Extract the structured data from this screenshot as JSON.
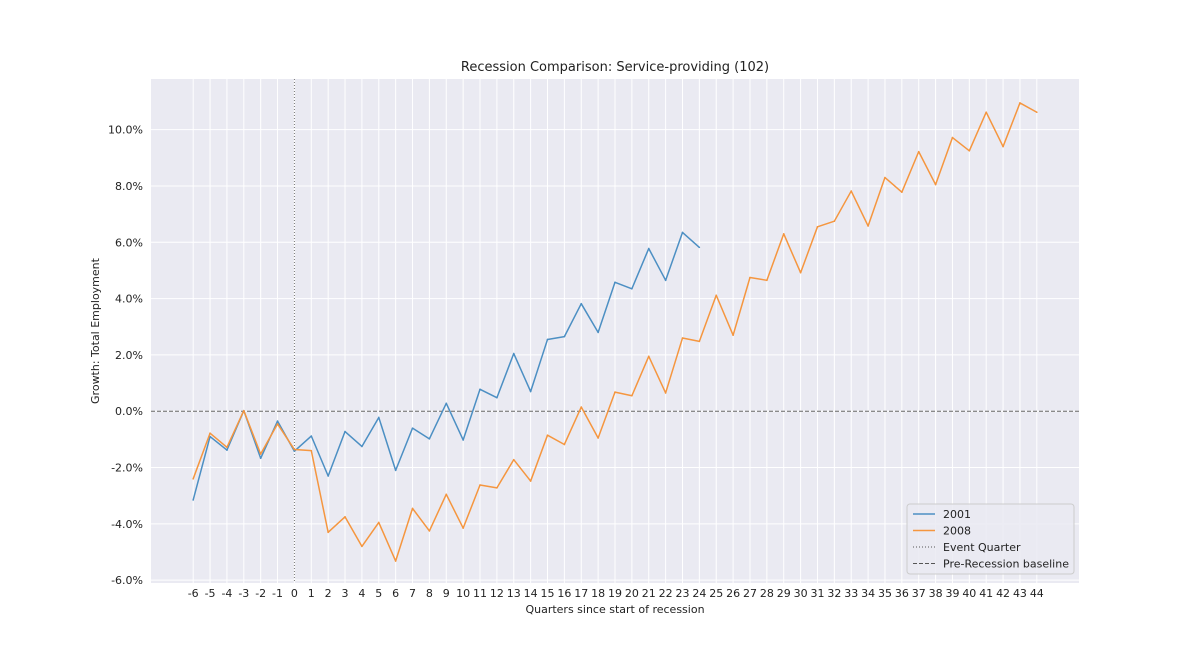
{
  "chart_data": {
    "type": "line",
    "title": "Recession Comparison: Service-providing (102)",
    "xlabel": "Quarters since start of recession",
    "ylabel": "Growth: Total Employment",
    "xlim": [
      -8.5,
      46.5
    ],
    "ylim": [
      -6.1,
      11.8
    ],
    "x_ticks": [
      -6,
      -5,
      -4,
      -3,
      -2,
      -1,
      0,
      1,
      2,
      3,
      4,
      5,
      6,
      7,
      8,
      9,
      10,
      11,
      12,
      13,
      14,
      15,
      16,
      17,
      18,
      19,
      20,
      21,
      22,
      23,
      24,
      25,
      26,
      27,
      28,
      29,
      30,
      31,
      32,
      33,
      34,
      35,
      36,
      37,
      38,
      39,
      40,
      41,
      42,
      43,
      44
    ],
    "y_ticks": [
      -6,
      -4,
      -2,
      0,
      2,
      4,
      6,
      8,
      10
    ],
    "y_tick_labels": [
      "-6.0%",
      "-4.0%",
      "-2.0%",
      "0.0%",
      "2.0%",
      "4.0%",
      "6.0%",
      "8.0%",
      "10.0%"
    ],
    "grid": true,
    "event_quarter_x": 0,
    "baseline_y": 0,
    "legend_position": "bottom-right",
    "series": [
      {
        "name": "2001",
        "color": "#4c8fc3",
        "x": [
          -6,
          -5,
          -4,
          -3,
          -2,
          -1,
          0,
          1,
          2,
          3,
          4,
          5,
          6,
          7,
          8,
          9,
          10,
          11,
          12,
          13,
          14,
          15,
          16,
          17,
          18,
          19,
          20,
          21,
          22,
          23,
          24
        ],
        "values": [
          -3.15,
          -0.9,
          -1.38,
          0.02,
          -1.67,
          -0.35,
          -1.42,
          -0.88,
          -2.3,
          -0.72,
          -1.25,
          -0.22,
          -2.1,
          -0.6,
          -0.98,
          0.28,
          -1.02,
          0.78,
          0.48,
          2.05,
          0.7,
          2.55,
          2.65,
          3.82,
          2.8,
          4.58,
          4.35,
          5.78,
          4.65,
          6.35,
          5.82
        ]
      },
      {
        "name": "2008",
        "color": "#f5963f",
        "x": [
          -6,
          -5,
          -4,
          -3,
          -2,
          -1,
          0,
          1,
          2,
          3,
          4,
          5,
          6,
          7,
          8,
          9,
          10,
          11,
          12,
          13,
          14,
          15,
          16,
          17,
          18,
          19,
          20,
          21,
          22,
          23,
          24,
          25,
          26,
          27,
          28,
          29,
          30,
          31,
          32,
          33,
          34,
          35,
          36,
          37,
          38,
          39,
          40,
          41,
          42,
          43,
          44
        ],
        "values": [
          -2.4,
          -0.78,
          -1.28,
          0.02,
          -1.52,
          -0.45,
          -1.36,
          -1.4,
          -4.3,
          -3.75,
          -4.8,
          -3.95,
          -5.32,
          -3.45,
          -4.25,
          -2.95,
          -4.15,
          -2.62,
          -2.72,
          -1.72,
          -2.48,
          -0.85,
          -1.18,
          0.15,
          -0.95,
          0.68,
          0.55,
          1.95,
          0.65,
          2.6,
          2.48,
          4.12,
          2.7,
          4.75,
          4.65,
          6.3,
          4.92,
          6.55,
          6.75,
          7.82,
          6.58,
          8.3,
          7.78,
          9.22,
          8.05,
          9.72,
          9.25,
          10.62,
          9.4,
          10.95,
          10.62
        ]
      }
    ],
    "reference_lines": [
      {
        "name": "Event Quarter",
        "style": "dotted",
        "color": "#555555"
      },
      {
        "name": "Pre-Recession baseline",
        "style": "dashed",
        "color": "#555555"
      }
    ]
  }
}
